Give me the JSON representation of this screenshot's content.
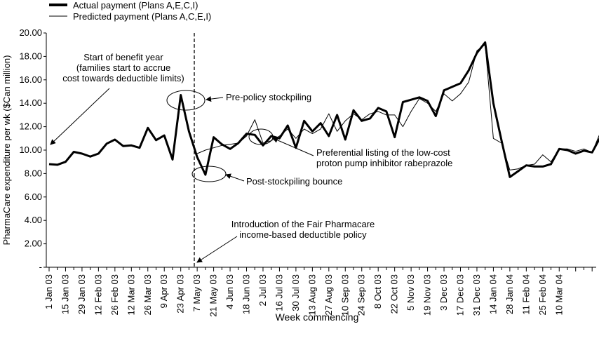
{
  "chart_data": {
    "type": "line",
    "title": "",
    "xlabel": "Week commencing",
    "ylabel": "PharmaCare expenditure per wk ($Can million)",
    "ylim": [
      0,
      20
    ],
    "yticks": [
      "-",
      "2.00",
      "4.00",
      "6.00",
      "8.00",
      "10.00",
      "12.00",
      "14.00",
      "16.00",
      "18.00",
      "20.00"
    ],
    "x_tick_labels": [
      "1 Jan 03",
      "15 Jan 03",
      "29 Jan 03",
      "12 Feb 03",
      "26 Feb 03",
      "12 Mar 03",
      "26 Mar 03",
      "9 Apr 03",
      "23 Apr 03",
      "7 May 03",
      "21 May 03",
      "4 Jun 03",
      "18 Jun 03",
      "2 Jul 03",
      "16 Jul 03",
      "30 Jul 03",
      "13 Aug 03",
      "27 Aug 03",
      "10 Sep 03",
      "24 Sep 03",
      "8 Oct 03",
      "22 Oct 03",
      "5 Nov 03",
      "19 Nov 03",
      "3 Dec 03",
      "17 Dec 03",
      "31 Dec 03",
      "14 Jan 04",
      "28 Jan 04",
      "11 Feb 04",
      "25 Feb 04",
      "10 Mar 04"
    ],
    "legend_position": "top-left",
    "grid": false,
    "series": [
      {
        "name": "Actual payment (Plans A,E,C,I)",
        "style": "thick",
        "values": [
          8.8,
          8.75,
          9.0,
          9.85,
          9.7,
          9.45,
          9.7,
          10.55,
          10.9,
          10.35,
          10.4,
          10.2,
          11.9,
          10.85,
          11.25,
          9.2,
          14.7,
          11.6,
          9.4,
          7.9,
          11.1,
          10.5,
          10.1,
          10.6,
          11.4,
          11.3,
          10.4,
          11.2,
          11.0,
          12.1,
          10.2,
          12.5,
          11.6,
          12.3,
          11.2,
          13.0,
          10.9,
          13.4,
          12.5,
          12.7,
          13.6,
          13.3,
          11.1,
          14.1,
          14.3,
          14.5,
          14.2,
          12.9,
          15.1,
          15.4,
          15.7,
          16.8,
          18.3,
          19.2,
          14.0,
          10.8,
          7.7,
          8.2,
          8.7,
          8.6,
          8.6,
          8.8,
          10.1,
          10.0,
          9.7,
          9.95,
          9.8,
          11.1
        ]
      },
      {
        "name": "Predicted payment (Plans A,C,E,I)",
        "style": "thin",
        "values": [
          null,
          null,
          null,
          null,
          null,
          null,
          null,
          null,
          null,
          null,
          null,
          null,
          null,
          null,
          null,
          null,
          null,
          null,
          9.7,
          10.0,
          10.2,
          10.4,
          10.5,
          10.6,
          11.2,
          12.6,
          10.6,
          10.8,
          11.2,
          11.8,
          11.0,
          11.8,
          11.4,
          11.8,
          13.1,
          11.6,
          12.5,
          13.1,
          12.6,
          13.1,
          13.3,
          13.0,
          13.0,
          12.0,
          13.3,
          14.4,
          14.0,
          13.3,
          14.8,
          14.2,
          14.8,
          15.8,
          18.5,
          19.0,
          11.0,
          10.6,
          8.3,
          8.4,
          8.7,
          8.8,
          9.6,
          9.0,
          10.1,
          10.1,
          9.9,
          10.1,
          9.8,
          11.5
        ]
      }
    ],
    "annotations": [
      {
        "id": "start_benefit",
        "lines": [
          "Start of benefit year",
          "(families start to accrue",
          "cost towards deductible limits)"
        ]
      },
      {
        "id": "pre_policy",
        "lines": [
          "Pre-policy stockpiling"
        ]
      },
      {
        "id": "ppi",
        "lines": [
          "Preferential listing of the low-cost",
          "proton pump inhibitor rabeprazole"
        ]
      },
      {
        "id": "post_stock",
        "lines": [
          "Post-stockpiling bounce"
        ]
      },
      {
        "id": "fair_pharmacare",
        "lines": [
          "Introduction of the Fair Pharmacare",
          "income-based deductible policy"
        ]
      }
    ]
  }
}
